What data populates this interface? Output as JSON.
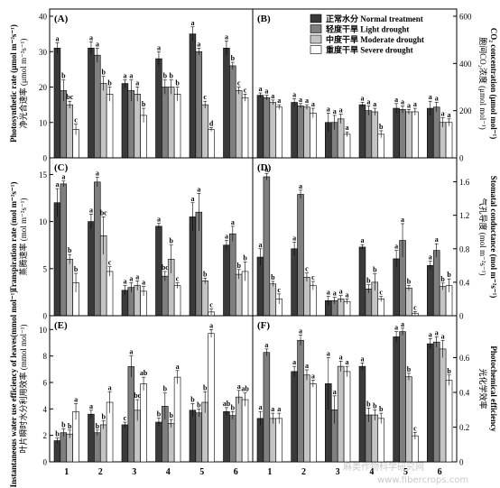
{
  "legend": {
    "entries": [
      {
        "label": "正常水分 Normal treatment",
        "color": "#3a3a3a"
      },
      {
        "label": "轻度干旱 Light drought",
        "color": "#7f7f7f"
      },
      {
        "label": "中度干旱 Moderate drought",
        "color": "#c4c4c4"
      },
      {
        "label": "重度干旱 Severe drought",
        "color": "#ffffff"
      }
    ]
  },
  "watermark": {
    "line1": "麻类作物科学研究网",
    "line2": "www.fibercrops.com"
  },
  "chart_data": [
    {
      "type": "bar",
      "panel": "(A)",
      "categories": [
        "1",
        "2",
        "3",
        "4",
        "5",
        "6"
      ],
      "ylabel": "净光合速率 (μmol m⁻²s⁻¹)",
      "ylabel2": "Photosynthetic rate (μmol m⁻²s⁻¹)",
      "ylim": [
        0,
        40
      ],
      "ticks": [
        0,
        10,
        20,
        30,
        40
      ],
      "ytick_side": "left",
      "series": [
        {
          "name": "正常水分 Normal treatment",
          "values": [
            31,
            31,
            21,
            28,
            35,
            31
          ],
          "err": [
            1.5,
            1.8,
            1.0,
            2.0,
            2.0,
            2.0
          ],
          "letters": [
            "a",
            "a",
            "a",
            "a",
            "a",
            "a"
          ]
        },
        {
          "name": "轻度干旱 Light drought",
          "values": [
            19,
            29,
            19,
            20,
            30,
            26
          ],
          "err": [
            3.0,
            2.0,
            3.0,
            2.0,
            1.0,
            1.0
          ],
          "letters": [
            "b",
            "a",
            "a",
            "b",
            "a",
            "b"
          ]
        },
        {
          "name": "中度干旱 Moderate drought",
          "values": [
            15,
            21,
            18,
            20,
            15,
            19
          ],
          "err": [
            1.0,
            2.0,
            2.0,
            2.0,
            1.0,
            1.0
          ],
          "letters": [
            "bc",
            "b",
            "a",
            "b",
            "c",
            "c"
          ]
        },
        {
          "name": "重度干旱 Severe drought",
          "values": [
            8,
            18,
            12,
            18,
            8,
            17
          ],
          "err": [
            1.5,
            2.0,
            2.0,
            2.0,
            0.5,
            1.0
          ],
          "letters": [
            "c",
            "b",
            "b",
            "b",
            "d",
            "c"
          ]
        }
      ]
    },
    {
      "type": "bar",
      "panel": "(B)",
      "categories": [
        "1",
        "2",
        "3",
        "4",
        "5",
        "6"
      ],
      "ylabel": "胞间CO₂浓度 (μmol mol⁻¹)",
      "ylabel2": "CO₂ concentration (μmol mol⁻¹)",
      "ylim": [
        0,
        600
      ],
      "ticks": [
        0,
        200,
        400,
        600
      ],
      "ytick_side": "right",
      "series": [
        {
          "name": "正常水分 Normal treatment",
          "values": [
            265,
            235,
            150,
            225,
            210,
            210
          ],
          "err": [
            10,
            15,
            40,
            10,
            20,
            30
          ],
          "letters": [
            "a",
            "a",
            "a",
            "a",
            "a",
            "a"
          ]
        },
        {
          "name": "轻度干旱 Light drought",
          "values": [
            255,
            220,
            150,
            200,
            205,
            215
          ],
          "err": [
            10,
            10,
            30,
            20,
            15,
            20
          ],
          "letters": [
            "a",
            "a",
            "a",
            "a",
            "a",
            "a"
          ]
        },
        {
          "name": "中度干旱 Moderate drought",
          "values": [
            235,
            215,
            165,
            195,
            195,
            150
          ],
          "err": [
            10,
            10,
            20,
            15,
            10,
            20
          ],
          "letters": [
            "a",
            "a",
            "a",
            "a",
            "a",
            "a"
          ]
        },
        {
          "name": "重度干旱 Severe drought",
          "values": [
            215,
            190,
            100,
            100,
            195,
            150
          ],
          "err": [
            10,
            20,
            10,
            15,
            15,
            15
          ],
          "letters": [
            "a",
            "a",
            "a",
            "b",
            "a",
            "a"
          ]
        }
      ]
    },
    {
      "type": "bar",
      "panel": "(C)",
      "categories": [
        "1",
        "2",
        "3",
        "4",
        "5",
        "6"
      ],
      "ylabel": "蒸腾速率 (mol m⁻²s⁻¹)",
      "ylabel2": "Transpiration rate (mol m⁻²s⁻¹)",
      "ylim": [
        0,
        16
      ],
      "ticks": [
        0,
        5,
        10,
        15
      ],
      "ytick_side": "left",
      "series": [
        {
          "name": "正常水分 Normal treatment",
          "values": [
            12,
            10,
            2.7,
            9.5,
            10.5,
            7.5
          ],
          "err": [
            1.5,
            0.8,
            0.5,
            0.3,
            1.5,
            0.5
          ],
          "letters": [
            "a",
            "a",
            "a",
            "a",
            "a",
            "a"
          ]
        },
        {
          "name": "轻度干旱 Light drought",
          "values": [
            14,
            14.2,
            3.0,
            4.2,
            11,
            8.7
          ],
          "err": [
            0.3,
            0.5,
            0.5,
            0.5,
            2.0,
            0.8
          ],
          "letters": [
            "a",
            "a",
            "a",
            "bc",
            "a",
            "a"
          ]
        },
        {
          "name": "中度干旱 Moderate drought",
          "values": [
            6,
            8.5,
            3.2,
            6,
            3.7,
            4.4
          ],
          "err": [
            0.5,
            2.0,
            0.5,
            1.5,
            0.3,
            0.5
          ],
          "letters": [
            "b",
            "bc",
            "a",
            "b",
            "b",
            "b"
          ]
        },
        {
          "name": "重度干旱 Severe drought",
          "values": [
            3.5,
            4.7,
            2.6,
            3.2,
            0.4,
            4.7
          ],
          "err": [
            1.0,
            0.5,
            0.5,
            0.3,
            0.3,
            1.0
          ],
          "letters": [
            "b",
            "c",
            "a",
            "c",
            "c",
            "b"
          ]
        }
      ]
    },
    {
      "type": "bar",
      "panel": "(D)",
      "categories": [
        "1",
        "2",
        "3",
        "4",
        "5",
        "6"
      ],
      "ylabel": "气孔导度 (mol m⁻²s⁻¹)",
      "ylabel2": "Stomatal conductance (mol m⁻²s⁻¹)",
      "ylim": [
        0,
        1.8
      ],
      "ticks": [
        0,
        0.4,
        0.8,
        1.2,
        1.6
      ],
      "ytick_side": "right",
      "series": [
        {
          "name": "正常水分 Normal treatment",
          "values": [
            0.7,
            0.8,
            0.18,
            0.82,
            0.68,
            0.6
          ],
          "err": [
            0.1,
            0.08,
            0.05,
            0.03,
            0.1,
            0.05
          ],
          "letters": [
            "a",
            "a",
            "a",
            "a",
            "a",
            "a"
          ]
        },
        {
          "name": "轻度干旱 Light drought",
          "values": [
            1.66,
            1.45,
            0.18,
            0.32,
            0.9,
            0.78
          ],
          "err": [
            0.04,
            0.05,
            0.04,
            0.05,
            0.2,
            0.08
          ],
          "letters": [
            "a",
            "a",
            "a",
            "b",
            "a",
            "a"
          ]
        },
        {
          "name": "中度干旱 Moderate drought",
          "values": [
            0.38,
            0.46,
            0.2,
            0.4,
            0.33,
            0.35
          ],
          "err": [
            0.03,
            0.05,
            0.04,
            0.1,
            0.03,
            0.04
          ],
          "letters": [
            "b",
            "c",
            "a",
            "b",
            "b",
            "b"
          ]
        },
        {
          "name": "重度干旱 Severe drought",
          "values": [
            0.2,
            0.36,
            0.17,
            0.2,
            0.03,
            0.36
          ],
          "err": [
            0.06,
            0.05,
            0.03,
            0.03,
            0.02,
            0.08
          ],
          "letters": [
            "c",
            "c",
            "a",
            "c",
            "c",
            "b"
          ]
        }
      ]
    },
    {
      "type": "bar",
      "panel": "(E)",
      "categories": [
        "1",
        "2",
        "3",
        "4",
        "5",
        "6"
      ],
      "ylabel": "叶片瞬时水分利用效率 (mmol mol⁻¹)",
      "ylabel2": "Instantaneous water use efficiency of leaves(mmol mol⁻¹)",
      "ylim": [
        0,
        10.5
      ],
      "ticks": [
        0,
        2,
        4,
        6,
        8,
        10
      ],
      "ytick_side": "left",
      "series": [
        {
          "name": "正常水分 Normal treatment",
          "values": [
            1.6,
            3.6,
            2.8,
            3.0,
            3.9,
            3.8
          ],
          "err": [
            0.2,
            0.3,
            0.2,
            0.3,
            0.5,
            0.3
          ],
          "letters": [
            "b",
            "a",
            "c",
            "b",
            "b",
            "ab"
          ]
        },
        {
          "name": "轻度干旱 Light drought",
          "values": [
            2.2,
            2.2,
            7.2,
            4.2,
            3.7,
            3.5
          ],
          "err": [
            0.3,
            0.2,
            0.8,
            1.0,
            0.3,
            0.3
          ],
          "letters": [
            "b",
            "b",
            "a",
            "b",
            "b",
            "b"
          ]
        },
        {
          "name": "中度干旱 Moderate drought",
          "values": [
            2.1,
            2.8,
            3.9,
            2.9,
            4.5,
            4.9
          ],
          "err": [
            0.3,
            0.3,
            0.8,
            0.3,
            0.8,
            0.5
          ],
          "letters": [
            "b",
            "b",
            "bc",
            "b",
            "b",
            "a"
          ]
        },
        {
          "name": "重度干旱 Severe drought",
          "values": [
            3.8,
            4.5,
            5.9,
            6.4,
            9.7,
            4.7
          ],
          "err": [
            0.6,
            0.8,
            0.5,
            0.5,
            0.3,
            0.5
          ],
          "letters": [
            "a",
            "a",
            "ab",
            "a",
            "a",
            "ab"
          ]
        }
      ]
    },
    {
      "type": "bar",
      "panel": "(F)",
      "categories": [
        "1",
        "2",
        "3",
        "4",
        "5",
        "6"
      ],
      "ylabel": "光化学效率",
      "ylabel2": "Photochemical efficiency",
      "ylim": [
        0,
        0.8
      ],
      "ticks": [
        0,
        0.2,
        0.4,
        0.6
      ],
      "ytick_side": "right",
      "series": [
        {
          "name": "正常水分 Normal treatment",
          "values": [
            0.25,
            0.52,
            0.45,
            0.55,
            0.72,
            0.68
          ],
          "err": [
            0.04,
            0.03,
            0.15,
            0.02,
            0.03,
            0.03
          ],
          "letters": [
            "a",
            "a",
            "a",
            "a",
            "a",
            "a"
          ]
        },
        {
          "name": "轻度干旱 Light drought",
          "values": [
            0.63,
            0.7,
            0.3,
            0.27,
            0.75,
            0.69
          ],
          "err": [
            0.02,
            0.03,
            0.08,
            0.04,
            0.02,
            0.03
          ],
          "letters": [
            "a",
            "a",
            "a",
            "b",
            "a",
            "a"
          ]
        },
        {
          "name": "中度干旱 Moderate drought",
          "values": [
            0.25,
            0.5,
            0.55,
            0.27,
            0.49,
            0.65
          ],
          "err": [
            0.03,
            0.03,
            0.03,
            0.03,
            0.02,
            0.05
          ],
          "letters": [
            "a",
            "a",
            "a",
            "b",
            "b",
            "a"
          ]
        },
        {
          "name": "重度干旱 Severe drought",
          "values": [
            0.25,
            0.45,
            0.52,
            0.25,
            0.15,
            0.47
          ],
          "err": [
            0.03,
            0.02,
            0.03,
            0.03,
            0.02,
            0.03
          ],
          "letters": [
            "a",
            "a",
            "a",
            "b",
            "c",
            "b"
          ]
        }
      ]
    }
  ]
}
